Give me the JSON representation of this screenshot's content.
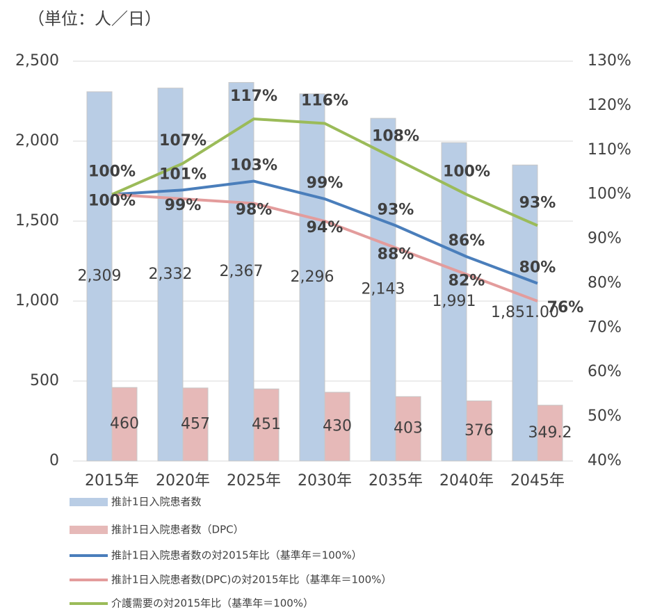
{
  "chart_data": {
    "type": "combo",
    "title": "（単位：人／日）",
    "categories": [
      "2015年",
      "2020年",
      "2025年",
      "2030年",
      "2035年",
      "2040年",
      "2045年"
    ],
    "series": [
      {
        "name": "推計1日入院患者数",
        "type": "bar",
        "color": "#b9cde5",
        "label_color": "#404040",
        "values": [
          2309,
          2332,
          2367,
          2296,
          2143,
          1991,
          1851
        ],
        "value_labels": [
          "2,309",
          "2,332",
          "2,367",
          "2,296",
          "2,143",
          "1,991",
          "1,851.00"
        ]
      },
      {
        "name": "推計1日入院患者数（DPC）",
        "type": "bar",
        "color": "#e6b9b8",
        "label_color": "#404040",
        "values": [
          460,
          457,
          451,
          430,
          403,
          376,
          349.2
        ]
      },
      {
        "name": "推計1日入院患者数の対2015年比（基準年＝100%）",
        "type": "line",
        "axis": "y2",
        "color": "#4a7ebb",
        "label_color": "#1f497d",
        "values": [
          100,
          101,
          103,
          99,
          93,
          86,
          80
        ],
        "value_labels": [
          null,
          "101%",
          "103%",
          "99%",
          "93%",
          "86%",
          "80%"
        ]
      },
      {
        "name": "推計1日入院患者数(DPC)の対2015年比（基準年＝100%）",
        "type": "line",
        "axis": "y2",
        "color": "#e39c9c",
        "label_color": "#ff0000",
        "values": [
          100,
          99,
          98,
          94,
          88,
          82,
          76
        ],
        "value_labels": [
          "100%",
          "99%",
          "98%",
          "94%",
          "88%",
          "82%",
          "76%"
        ]
      },
      {
        "name": "介護需要の対2015年比（基準年＝100%）",
        "type": "line",
        "axis": "y2",
        "color": "#9bbb59",
        "label_color": "#4f6228",
        "values": [
          100,
          107,
          117,
          116,
          108,
          100,
          93
        ],
        "value_labels": [
          "100%",
          "107%",
          "117%",
          "116%",
          "108%",
          "100%",
          "93%"
        ]
      }
    ],
    "ylim": [
      0,
      2500
    ],
    "yticks": [
      0,
      500,
      {
        "value": 1000,
        "label": "1,000"
      },
      {
        "value": 1500,
        "label": "1,500"
      },
      {
        "value": 2000,
        "label": "2,000"
      },
      {
        "value": 2500,
        "label": "2,500"
      }
    ],
    "y2lim": [
      40,
      130
    ],
    "y2ticks": [
      {
        "value": 40,
        "label": "40%"
      },
      {
        "value": 50,
        "label": "50%"
      },
      {
        "value": 60,
        "label": "60%"
      },
      {
        "value": 70,
        "label": "70%"
      },
      {
        "value": 80,
        "label": "80%"
      },
      {
        "value": 90,
        "label": "90%"
      },
      {
        "value": 100,
        "label": "100%"
      },
      {
        "value": 110,
        "label": "110%"
      },
      {
        "value": 120,
        "label": "120%"
      },
      {
        "value": 130,
        "label": "130%"
      }
    ],
    "grid": true
  }
}
